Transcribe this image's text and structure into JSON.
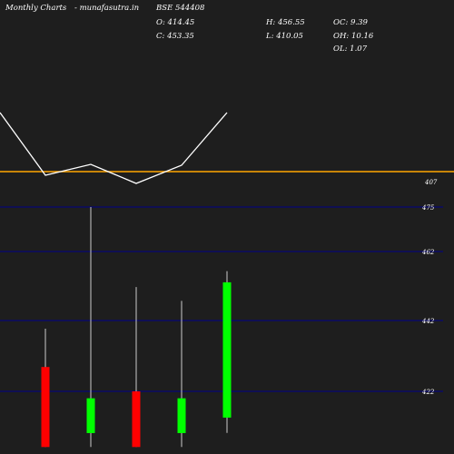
{
  "header": {
    "title": "Monthly Charts",
    "site": "- munafasutra.in",
    "symbol": "BSE 544408",
    "open": "O: 414.45",
    "close": "C: 453.35",
    "high": "H: 456.55",
    "low": "L: 410.05",
    "oc": "OC: 9.39",
    "oh": "OH: 10.16",
    "ol": "OL: 1.07"
  },
  "colors": {
    "background": "#1e1e1e",
    "up": "#00ff00",
    "down": "#ff0000",
    "reference_line": "#ffa500",
    "grid": "#00008b",
    "line": "#ffffff"
  },
  "chart_data": {
    "type": "candlestick",
    "y_ticks": [
      475,
      462,
      442,
      422
    ],
    "reference_line": {
      "label": "407"
    },
    "line_overlay": [
      {
        "x": 0,
        "y": 124
      },
      {
        "x": 50,
        "y": 193
      },
      {
        "x": 100,
        "y": 181
      },
      {
        "x": 150,
        "y": 202
      },
      {
        "x": 200,
        "y": 182
      },
      {
        "x": 250,
        "y": 124
      }
    ],
    "candles": [
      {
        "open": 429,
        "close": 406,
        "high": 440,
        "low": 406,
        "direction": "down"
      },
      {
        "open": 410,
        "close": 420,
        "high": 475,
        "low": 406,
        "direction": "up"
      },
      {
        "open": 422,
        "close": 406,
        "high": 452,
        "low": 406,
        "direction": "down"
      },
      {
        "open": 410,
        "close": 420,
        "high": 448,
        "low": 406,
        "direction": "up"
      },
      {
        "open": 414.45,
        "close": 453.35,
        "high": 456.55,
        "low": 410.05,
        "direction": "up"
      }
    ]
  }
}
